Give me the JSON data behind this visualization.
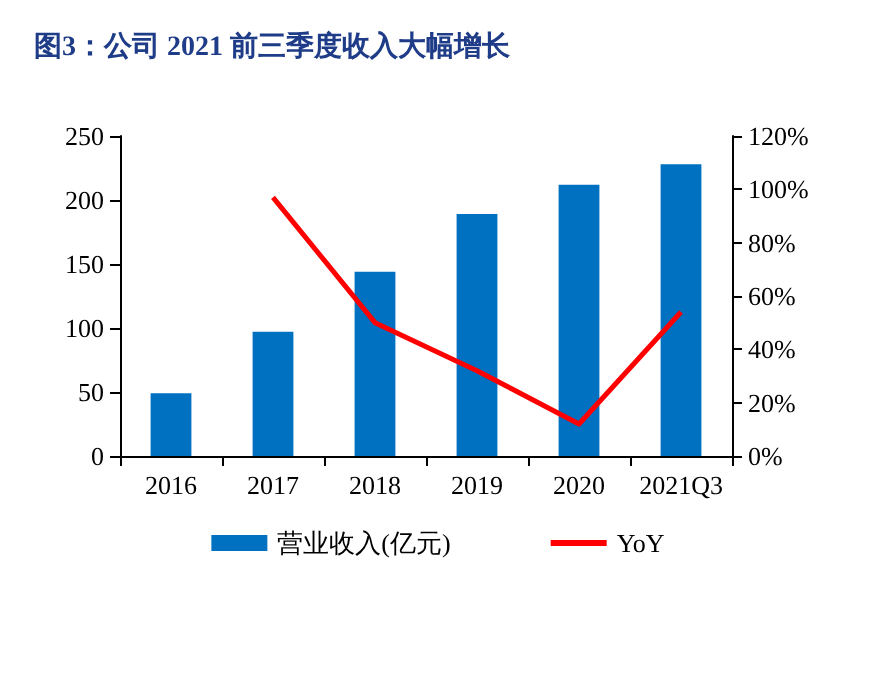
{
  "chart_data": {
    "type": "bar",
    "title": "图3：公司 2021 前三季度收入大幅增长",
    "categories": [
      "2016",
      "2017",
      "2018",
      "2019",
      "2020",
      "2021Q3"
    ],
    "series": [
      {
        "name": "营业收入(亿元)",
        "color": "#0070c0",
        "values": [
          49,
          97,
          144,
          189,
          212,
          228
        ]
      },
      {
        "name": "YoY",
        "type": "line",
        "axis": "y2",
        "color": "#ff0000",
        "values": [
          null,
          97,
          50,
          32,
          12,
          54
        ]
      }
    ],
    "ylim": [
      0,
      250
    ],
    "yticks": [
      0,
      50,
      100,
      150,
      200,
      250
    ],
    "y2lim": [
      0,
      120
    ],
    "y2ticks": [
      {
        "value": 0,
        "label": "0%"
      },
      {
        "value": 20,
        "label": "20%"
      },
      {
        "value": 40,
        "label": "40%"
      },
      {
        "value": 60,
        "label": "60%"
      },
      {
        "value": 80,
        "label": "80%"
      },
      {
        "value": 100,
        "label": "100%"
      },
      {
        "value": 120,
        "label": "120%"
      }
    ],
    "grid": false,
    "legend": "bottom",
    "marker": "none"
  }
}
